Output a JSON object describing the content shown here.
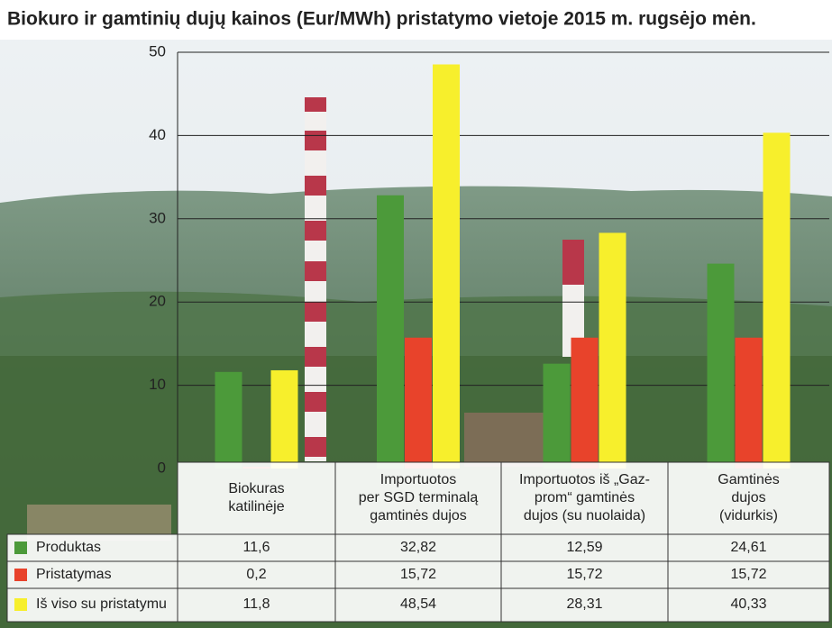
{
  "chart_data": {
    "type": "bar",
    "title": "Biokuro ir gamtinių dujų kainos (Eur/MWh) pristatymo vietoje 2015 m. rugsėjo mėn.",
    "categories": [
      "Biokuras\nkatilinėje",
      "Importuotos\nper SGD terminalą\ngamtinės dujos",
      "Importuotos iš „Gaz-\nprom“ gamtinės\ndujos (su nuolaida)",
      "Gamtinės\ndujos\n(vidurkis)"
    ],
    "series": [
      {
        "name": "Produktas",
        "color": "#4c9a3a",
        "values": [
          11.6,
          32.82,
          12.59,
          24.61
        ],
        "value_labels": [
          "11,6",
          "32,82",
          "12,59",
          "24,61"
        ]
      },
      {
        "name": "Pristatymas",
        "color": "#e8432b",
        "values": [
          0.2,
          15.72,
          15.72,
          15.72
        ],
        "value_labels": [
          "0,2",
          "15,72",
          "15,72",
          "15,72"
        ]
      },
      {
        "name": "Iš viso su pristatymu",
        "color": "#f7ef2c",
        "values": [
          11.8,
          48.54,
          28.31,
          40.33
        ],
        "value_labels": [
          "11,8",
          "48,54",
          "28,31",
          "40,33"
        ]
      }
    ],
    "ylim": [
      0,
      50
    ],
    "yticks": [
      0,
      10,
      20,
      30,
      40,
      50
    ],
    "grid": true
  }
}
